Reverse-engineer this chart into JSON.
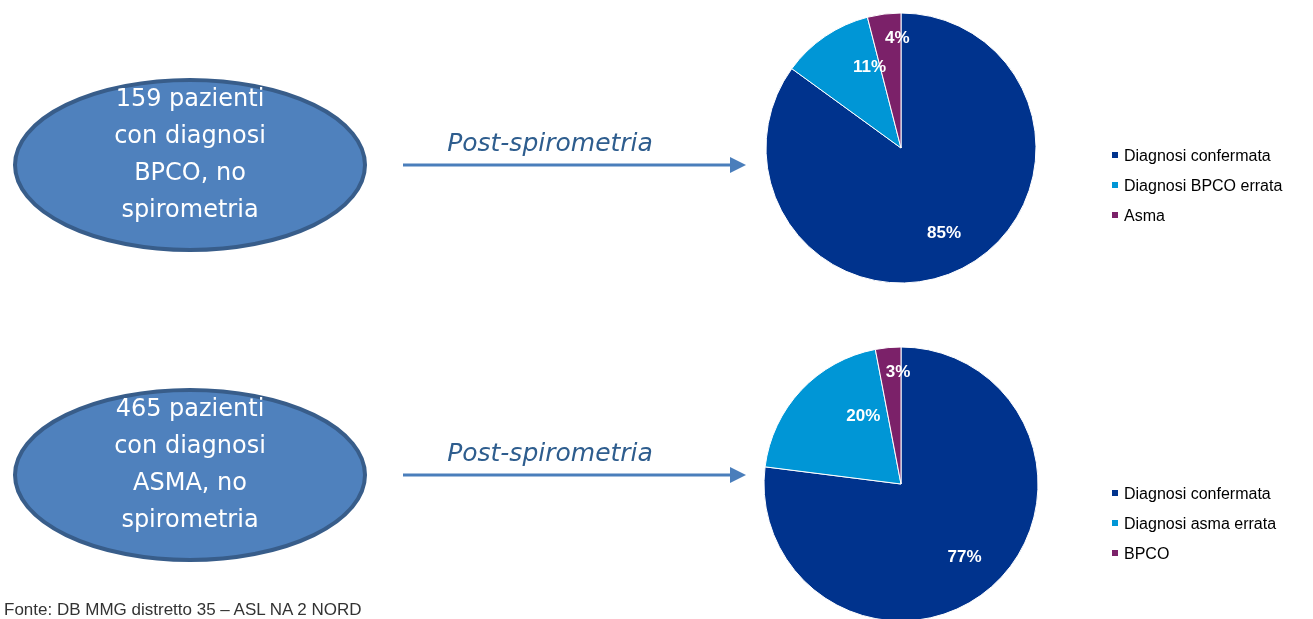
{
  "chart_data": [
    {
      "type": "pie",
      "categories": [
        "Diagnosi confermata",
        "Diagnosi BPCO errata",
        "Asma"
      ],
      "values": [
        85,
        11,
        4
      ],
      "colors": [
        "#00338d",
        "#0096d6",
        "#7b2169"
      ],
      "value_labels": [
        "85%",
        "11%",
        "4%"
      ],
      "legend": "right",
      "annotations": [
        "159 pazienti con diagnosi BPCO, no spirometria",
        "Post-spirometria"
      ]
    },
    {
      "type": "pie",
      "categories": [
        "Diagnosi confermata",
        "Diagnosi asma errata",
        "BPCO"
      ],
      "values": [
        77,
        20,
        3
      ],
      "colors": [
        "#00338d",
        "#0096d6",
        "#7b2169"
      ],
      "value_labels": [
        "77%",
        "20%",
        "3%"
      ],
      "legend": "right",
      "annotations": [
        "465 pazienti con diagnosi ASMA, no spirometria",
        "Post-spirometria",
        "Fonte: DB MMG distretto 35 – ASL NA 2 NORD"
      ]
    }
  ]
}
